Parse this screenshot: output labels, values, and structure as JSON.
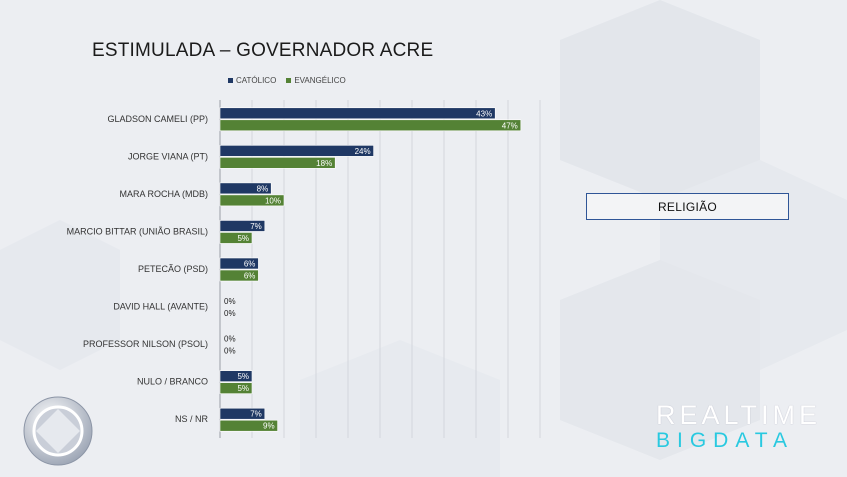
{
  "title": "ESTIMULADA – GOVERNADOR ACRE",
  "legend": [
    {
      "label": "CATÓLICO",
      "color": "#1f3864"
    },
    {
      "label": "EVANGÉLICO",
      "color": "#548235"
    }
  ],
  "box_label": "RELIGIÃO",
  "brand": {
    "line1": "REALTIME",
    "line2": "BIGDATA"
  },
  "chart_data": {
    "type": "bar",
    "orientation": "horizontal",
    "title": "ESTIMULADA – GOVERNADOR ACRE",
    "categories": [
      "GLADSON CAMELI (PP)",
      "JORGE VIANA (PT)",
      "MARA ROCHA (MDB)",
      "MARCIO BITTAR (UNIÃO BRASIL)",
      "PETECÃO (PSD)",
      "DAVID HALL (AVANTE)",
      "PROFESSOR NILSON (PSOL)",
      "NULO / BRANCO",
      "NS / NR"
    ],
    "series": [
      {
        "name": "CATÓLICO",
        "color": "#1f3864",
        "values": [
          43,
          24,
          8,
          7,
          6,
          0,
          0,
          5,
          7
        ]
      },
      {
        "name": "EVANGÉLICO",
        "color": "#548235",
        "values": [
          47,
          18,
          10,
          5,
          6,
          0,
          0,
          5,
          9
        ]
      }
    ],
    "value_suffix": "%",
    "xlim": [
      0,
      50
    ],
    "grid": true,
    "legend_position": "top-left"
  }
}
